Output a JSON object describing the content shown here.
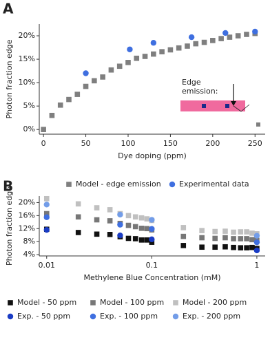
{
  "chart_data": [
    {
      "type": "scatter",
      "panel_label": "A",
      "x_label": "Dye doping (ppm)",
      "y_label": "Photon fraction edge",
      "xlim": [
        -5,
        262
      ],
      "ylim": [
        -1,
        22.5
      ],
      "xticks": [
        0,
        50,
        100,
        150,
        200,
        250
      ],
      "yticks": [
        {
          "value": 0,
          "label": "0%"
        },
        {
          "value": 5,
          "label": "5%"
        },
        {
          "value": 10,
          "label": "10%"
        },
        {
          "value": 15,
          "label": "15%"
        },
        {
          "value": 20,
          "label": "20%"
        }
      ],
      "annotation": [
        "Edge",
        "emission:"
      ],
      "legend": "bottom",
      "series": [
        {
          "name": "Model - edge emission",
          "color": "#7f7f7f",
          "marker": "square",
          "x": [
            0,
            10,
            20,
            30,
            40,
            50,
            60,
            70,
            80,
            90,
            100,
            110,
            120,
            130,
            140,
            150,
            160,
            170,
            180,
            190,
            200,
            210,
            220,
            230,
            240,
            250
          ],
          "values": [
            0,
            3.0,
            5.2,
            6.4,
            7.5,
            9.2,
            10.4,
            11.2,
            12.7,
            13.5,
            14.3,
            15.2,
            15.6,
            16.1,
            16.6,
            17.0,
            17.4,
            17.8,
            18.3,
            18.6,
            19.0,
            19.4,
            19.7,
            20.0,
            20.3,
            20.5
          ]
        },
        {
          "name": "Experimental data",
          "color": "#3f6fe0",
          "marker": "circle",
          "x": [
            50,
            102,
            130,
            175,
            215,
            250
          ],
          "values": [
            12.0,
            17.1,
            18.5,
            19.7,
            20.6,
            20.9
          ]
        }
      ]
    },
    {
      "type": "scatter",
      "panel_label": "B",
      "x_label": "Methylene Blue Concentration (mM)",
      "y_label": "Photon fraction edge",
      "xscale": "log",
      "xlim": [
        0.0085,
        1.2
      ],
      "ylim": [
        3.6,
        22
      ],
      "xticks": [
        0.01,
        0.1,
        1
      ],
      "yticks": [
        {
          "value": 4,
          "label": "4%"
        },
        {
          "value": 8,
          "label": "8%"
        },
        {
          "value": 12,
          "label": "12%"
        },
        {
          "value": 16,
          "label": "16%"
        },
        {
          "value": 20,
          "label": "20%"
        }
      ],
      "legend": "bottom",
      "series": [
        {
          "name": "Model - 50 ppm",
          "color": "#111111",
          "marker": "square",
          "x": [
            0.01,
            0.02,
            0.03,
            0.04,
            0.05,
            0.06,
            0.07,
            0.08,
            0.09,
            0.1,
            0.2,
            0.3,
            0.4,
            0.5,
            0.6,
            0.7,
            0.8,
            0.9,
            1.0
          ],
          "values": [
            11.8,
            10.8,
            10.3,
            10.2,
            9.5,
            9.0,
            8.9,
            8.5,
            8.5,
            7.8,
            6.8,
            6.3,
            6.3,
            6.4,
            6.2,
            6.1,
            6.1,
            6.2,
            5.9
          ]
        },
        {
          "name": "Model - 100 ppm",
          "color": "#777777",
          "marker": "square",
          "x": [
            0.01,
            0.02,
            0.03,
            0.04,
            0.05,
            0.06,
            0.07,
            0.08,
            0.09,
            0.1,
            0.2,
            0.3,
            0.4,
            0.5,
            0.6,
            0.7,
            0.8,
            0.9,
            1.0
          ],
          "values": [
            16.6,
            15.6,
            14.7,
            14.4,
            13.6,
            13.0,
            12.6,
            12.1,
            12.0,
            11.6,
            9.6,
            9.2,
            9.0,
            9.2,
            8.9,
            8.9,
            8.9,
            8.6,
            8.4
          ]
        },
        {
          "name": "Model - 200 ppm",
          "color": "#c0c0c0",
          "marker": "square",
          "x": [
            0.01,
            0.02,
            0.03,
            0.04,
            0.05,
            0.06,
            0.07,
            0.08,
            0.09,
            0.1,
            0.2,
            0.3,
            0.4,
            0.5,
            0.6,
            0.7,
            0.8,
            0.9,
            1.0
          ],
          "values": [
            21.2,
            19.6,
            18.4,
            17.8,
            16.6,
            16.0,
            15.6,
            15.3,
            15.0,
            14.5,
            12.3,
            11.4,
            11.1,
            11.2,
            10.9,
            11.0,
            11.0,
            10.6,
            10.4
          ]
        },
        {
          "name": "Exp. - 50 ppm",
          "color": "#1a3cc4",
          "marker": "circle",
          "x": [
            0.01,
            0.05,
            0.1,
            1.0
          ],
          "values": [
            11.6,
            9.9,
            8.7,
            5.3
          ]
        },
        {
          "name": "Exp. - 100 ppm",
          "color": "#3f6fe0",
          "marker": "circle",
          "x": [
            0.01,
            0.05,
            0.1,
            1.0
          ],
          "values": [
            15.5,
            13.2,
            11.9,
            7.8
          ]
        },
        {
          "name": "Exp. - 200 ppm",
          "color": "#739de8",
          "marker": "circle",
          "x": [
            0.01,
            0.05,
            0.1,
            1.0
          ],
          "values": [
            19.4,
            16.3,
            14.7,
            9.8
          ]
        }
      ]
    }
  ]
}
